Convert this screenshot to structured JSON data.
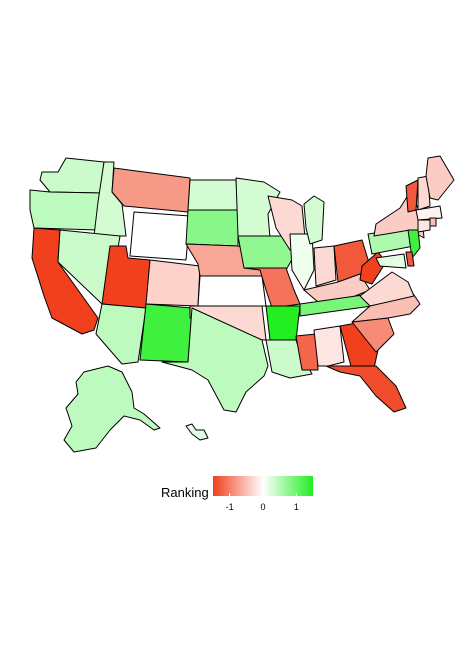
{
  "legend": {
    "title": "Ranking",
    "ticks": [
      {
        "value": -1,
        "label": "-1"
      },
      {
        "value": 0,
        "label": "0"
      },
      {
        "value": 1,
        "label": "1"
      }
    ],
    "domain": [
      -1.5,
      1.5
    ],
    "colors": {
      "low": "#f0401e",
      "mid": "#ffffff",
      "high": "#22ee22"
    }
  },
  "chart_data": {
    "type": "choropleth",
    "title": "",
    "legend_title": "Ranking",
    "value_range": [
      -1.5,
      1.5
    ],
    "states": [
      {
        "id": "WA",
        "value": 0.35
      },
      {
        "id": "OR",
        "value": 0.45
      },
      {
        "id": "CA",
        "value": -1.5
      },
      {
        "id": "ID",
        "value": 0.3
      },
      {
        "id": "NV",
        "value": 0.35
      },
      {
        "id": "MT",
        "value": -0.8
      },
      {
        "id": "WY",
        "value": 0.0
      },
      {
        "id": "UT",
        "value": -1.5
      },
      {
        "id": "AZ",
        "value": 0.45
      },
      {
        "id": "CO",
        "value": -0.35
      },
      {
        "id": "NM",
        "value": 1.3
      },
      {
        "id": "ND",
        "value": 0.3
      },
      {
        "id": "SD",
        "value": 0.8
      },
      {
        "id": "NE",
        "value": -0.7
      },
      {
        "id": "KS",
        "value": 0.0
      },
      {
        "id": "OK",
        "value": -0.3
      },
      {
        "id": "TX",
        "value": 0.45
      },
      {
        "id": "MN",
        "value": 0.3
      },
      {
        "id": "IA",
        "value": 0.75
      },
      {
        "id": "MO",
        "value": -1.1
      },
      {
        "id": "AR",
        "value": 1.5
      },
      {
        "id": "LA",
        "value": 0.35
      },
      {
        "id": "WI",
        "value": -0.3
      },
      {
        "id": "IL",
        "value": 0.1
      },
      {
        "id": "MS",
        "value": -1.2
      },
      {
        "id": "MI",
        "value": 0.3
      },
      {
        "id": "IN",
        "value": -0.3
      },
      {
        "id": "OH",
        "value": -1.3
      },
      {
        "id": "KY",
        "value": -0.4
      },
      {
        "id": "TN",
        "value": 0.9
      },
      {
        "id": "AL",
        "value": -0.2
      },
      {
        "id": "GA",
        "value": -1.5
      },
      {
        "id": "FL",
        "value": -1.4
      },
      {
        "id": "SC",
        "value": -0.9
      },
      {
        "id": "NC",
        "value": -0.5
      },
      {
        "id": "VA",
        "value": -0.3
      },
      {
        "id": "WV",
        "value": -1.5
      },
      {
        "id": "PA",
        "value": 0.55
      },
      {
        "id": "NY",
        "value": -0.4
      },
      {
        "id": "VT",
        "value": -1.3
      },
      {
        "id": "NH",
        "value": -0.3
      },
      {
        "id": "ME",
        "value": -0.4
      },
      {
        "id": "MA",
        "value": -0.1
      },
      {
        "id": "CT",
        "value": -0.2
      },
      {
        "id": "RI",
        "value": -0.5
      },
      {
        "id": "NJ",
        "value": 1.3
      },
      {
        "id": "DE",
        "value": -1.3
      },
      {
        "id": "MD",
        "value": 0.2
      },
      {
        "id": "AK",
        "value": 0.45
      },
      {
        "id": "HI",
        "value": 0.2
      }
    ]
  }
}
